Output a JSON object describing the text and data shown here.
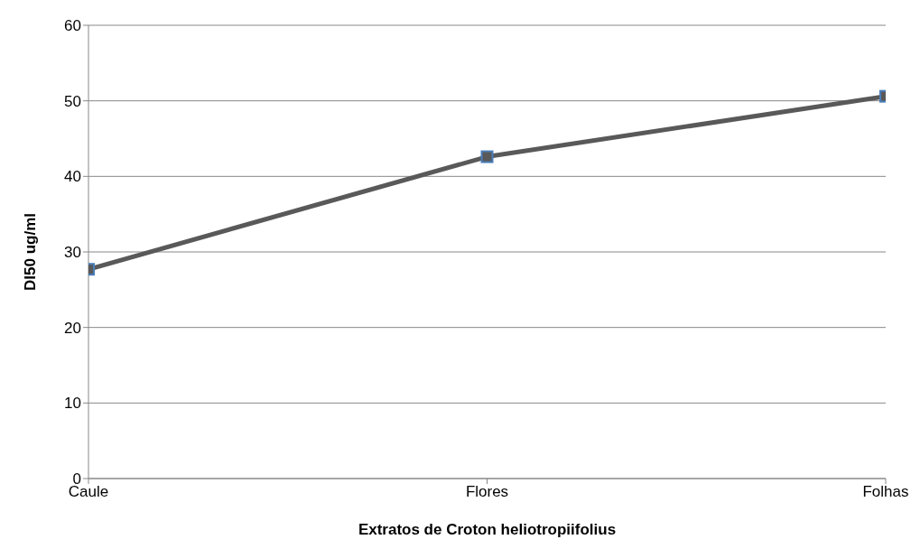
{
  "chart_data": {
    "type": "line",
    "xlabel": "Extratos de Croton heliotropiifolius",
    "ylabel": "DI50 ug/ml",
    "categories": [
      "Caule",
      "Flores",
      "Folhas"
    ],
    "series": [
      {
        "color": "#595959",
        "values": [
          27.7,
          42.6,
          50.6
        ]
      }
    ],
    "ylim": [
      0,
      60
    ],
    "yticks": [
      0,
      10,
      20,
      30,
      40,
      50,
      60
    ],
    "grid": "y",
    "legend": false,
    "marker": "square",
    "line_style": "solid"
  }
}
